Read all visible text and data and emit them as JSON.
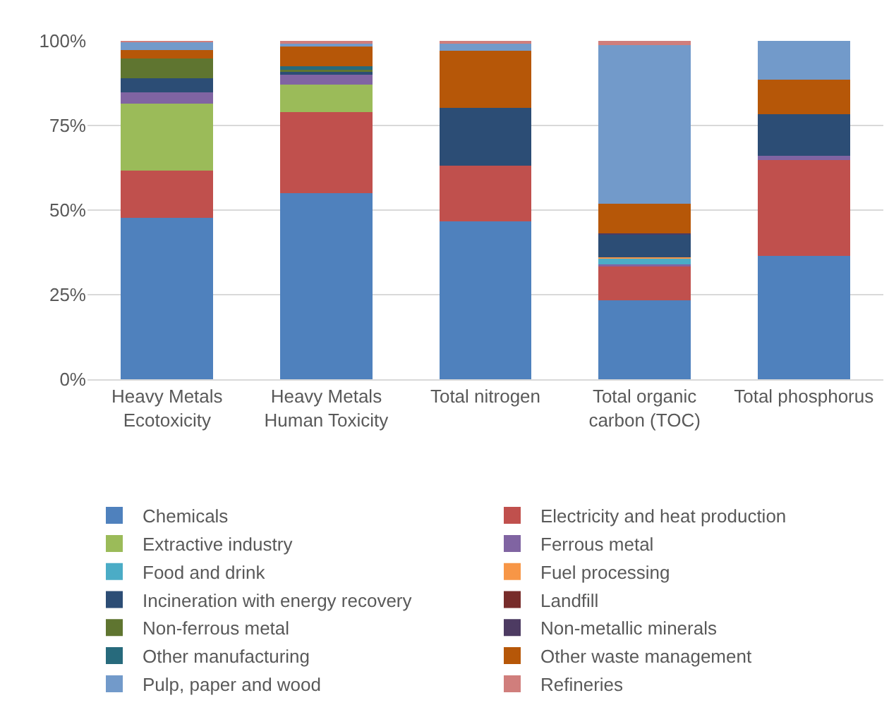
{
  "chart_data": {
    "type": "bar",
    "stacked": true,
    "categories": [
      "Heavy Metals Ecotoxicity",
      "Heavy Metals Human Toxicity",
      "Total nitrogen",
      "Total organic carbon (TOC)",
      "Total phosphorus"
    ],
    "ylim": [
      0,
      100
    ],
    "yticks": [
      {
        "value": 0,
        "label": "0%"
      },
      {
        "value": 25,
        "label": "25%"
      },
      {
        "value": 50,
        "label": "50%"
      },
      {
        "value": 75,
        "label": "75%"
      },
      {
        "value": 100,
        "label": "100%"
      }
    ],
    "grid": "y",
    "legend": "bottom",
    "series": [
      {
        "name": "Chemicals",
        "color": "#4f81bd",
        "values": [
          47.8,
          55.0,
          46.6,
          23.4,
          36.5
        ]
      },
      {
        "name": "Electricity and heat production",
        "color": "#c0504d",
        "values": [
          13.9,
          24.0,
          16.5,
          9.9,
          28.2
        ]
      },
      {
        "name": "Extractive industry",
        "color": "#9bbb59",
        "values": [
          19.7,
          8.1,
          null,
          null,
          null
        ]
      },
      {
        "name": "Ferrous metal",
        "color": "#8064a2",
        "values": [
          3.3,
          3.0,
          null,
          0.7,
          1.4
        ]
      },
      {
        "name": "Food and drink",
        "color": "#4bacc6",
        "values": [
          null,
          null,
          null,
          1.7,
          null
        ]
      },
      {
        "name": "Fuel processing",
        "color": "#f79646",
        "values": [
          null,
          null,
          null,
          0.4,
          null
        ]
      },
      {
        "name": "Incineration with energy recovery",
        "color": "#2c4d75",
        "values": [
          4.3,
          0.8,
          17.1,
          6.6,
          12.2
        ]
      },
      {
        "name": "Landfill",
        "color": "#772c2a",
        "values": [
          null,
          null,
          null,
          null,
          null
        ]
      },
      {
        "name": "Non-ferrous metal",
        "color": "#5f7530",
        "values": [
          5.8,
          0.5,
          null,
          null,
          null
        ]
      },
      {
        "name": "Non-metallic minerals",
        "color": "#4d3b62",
        "values": [
          null,
          null,
          null,
          0.5,
          null
        ]
      },
      {
        "name": "Other manufacturing",
        "color": "#276a7c",
        "values": [
          null,
          1.0,
          null,
          null,
          null
        ]
      },
      {
        "name": "Other waste management",
        "color": "#b65708",
        "values": [
          2.4,
          5.9,
          16.9,
          8.6,
          10.3
        ]
      },
      {
        "name": "Pulp, paper and wood",
        "color": "#729aca",
        "values": [
          2.4,
          0.8,
          2.0,
          47.0,
          11.4
        ]
      },
      {
        "name": "Refineries",
        "color": "#d07e7c",
        "values": [
          0.4,
          0.9,
          0.9,
          1.2,
          null
        ]
      }
    ]
  }
}
